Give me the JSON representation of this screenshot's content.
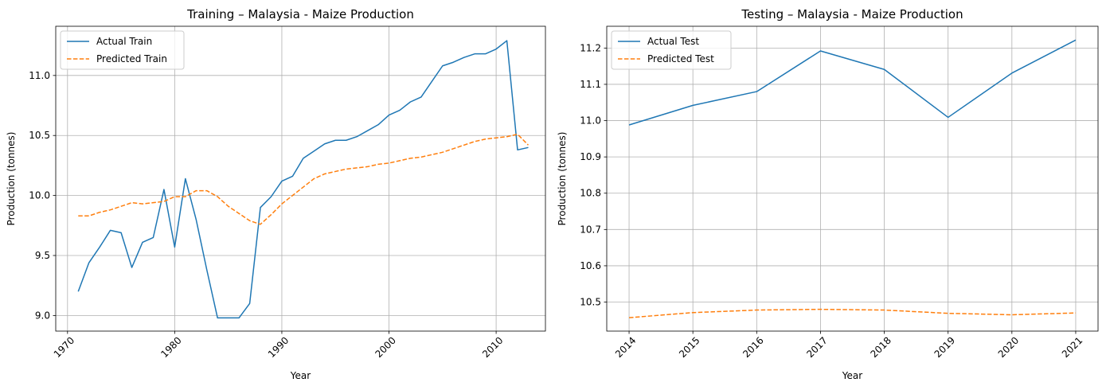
{
  "chart_data": [
    {
      "type": "line",
      "title": "Training – Malaysia - Maize Production",
      "xlabel": "Year",
      "ylabel": "Production (tonnes)",
      "xlim": [
        1969.9,
        1974.0
      ],
      "ylim": [
        8.87,
        11.41
      ],
      "xticks": [
        1970,
        1980,
        1990,
        2000,
        2010
      ],
      "yticks": [
        9.0,
        9.5,
        10.0,
        10.5,
        11.0
      ],
      "grid": true,
      "legend_position": "top-left",
      "series": [
        {
          "name": "Actual Train",
          "color": "#1f77b4",
          "style": "solid",
          "x": [
            1971,
            1972,
            1973,
            1974,
            1975,
            1976,
            1977,
            1978,
            1979,
            1980,
            1981,
            1982,
            1983,
            1984,
            1985,
            1986,
            1987,
            1988,
            1989,
            1990,
            1991,
            1992,
            1993,
            1994,
            1995,
            1996,
            1997,
            1998,
            1999,
            2000,
            2001,
            2002,
            2003,
            2004,
            2005,
            2006,
            2007,
            2008,
            2009,
            2010,
            2011,
            2012,
            2013
          ],
          "y": [
            9.2,
            9.44,
            9.57,
            9.71,
            9.69,
            9.4,
            9.61,
            9.65,
            10.05,
            9.57,
            10.14,
            9.8,
            9.38,
            8.98,
            8.98,
            8.98,
            9.1,
            9.9,
            9.99,
            10.12,
            10.16,
            10.31,
            10.37,
            10.43,
            10.46,
            10.46,
            10.49,
            10.54,
            10.59,
            10.67,
            10.71,
            10.78,
            10.82,
            10.95,
            11.08,
            11.11,
            11.15,
            11.18,
            11.18,
            11.22,
            11.29,
            10.38,
            10.4
          ]
        },
        {
          "name": "Predicted Train",
          "color": "#ff7f0e",
          "style": "dashed",
          "x": [
            1971,
            1972,
            1973,
            1974,
            1975,
            1976,
            1977,
            1978,
            1979,
            1980,
            1981,
            1982,
            1983,
            1984,
            1985,
            1986,
            1987,
            1988,
            1989,
            1990,
            1991,
            1992,
            1993,
            1994,
            1995,
            1996,
            1997,
            1998,
            1999,
            2000,
            2001,
            2002,
            2003,
            2004,
            2005,
            2006,
            2007,
            2008,
            2009,
            2010,
            2011,
            2012,
            2013
          ],
          "y": [
            9.83,
            9.83,
            9.86,
            9.88,
            9.91,
            9.94,
            9.93,
            9.94,
            9.95,
            9.99,
            9.99,
            10.04,
            10.04,
            9.99,
            9.91,
            9.85,
            9.79,
            9.76,
            9.84,
            9.93,
            10.0,
            10.07,
            10.14,
            10.18,
            10.2,
            10.22,
            10.23,
            10.24,
            10.26,
            10.27,
            10.29,
            10.31,
            10.32,
            10.34,
            10.36,
            10.39,
            10.42,
            10.45,
            10.47,
            10.48,
            10.49,
            10.51,
            10.42
          ]
        }
      ]
    },
    {
      "type": "line",
      "title": "Testing – Malaysia - Maize Production",
      "xlabel": "Year",
      "ylabel": "Production (tonnes)",
      "xlim": [
        2013.65,
        2021.35
      ],
      "ylim": [
        10.42,
        11.26
      ],
      "xticks": [
        2014,
        2015,
        2016,
        2017,
        2018,
        2019,
        2020,
        2021
      ],
      "yticks": [
        10.5,
        10.6,
        10.7,
        10.8,
        10.9,
        11.0,
        11.1,
        11.2
      ],
      "grid": true,
      "legend_position": "top-left",
      "series": [
        {
          "name": "Actual Test",
          "color": "#1f77b4",
          "style": "solid",
          "x": [
            2014,
            2015,
            2016,
            2017,
            2018,
            2019,
            2020,
            2021
          ],
          "y": [
            10.988,
            11.042,
            11.08,
            11.192,
            11.141,
            11.009,
            11.131,
            11.222
          ]
        },
        {
          "name": "Predicted Test",
          "color": "#ff7f0e",
          "style": "dashed",
          "x": [
            2014,
            2015,
            2016,
            2017,
            2018,
            2019,
            2020,
            2021
          ],
          "y": [
            10.457,
            10.471,
            10.478,
            10.48,
            10.478,
            10.469,
            10.465,
            10.47
          ]
        }
      ]
    }
  ]
}
